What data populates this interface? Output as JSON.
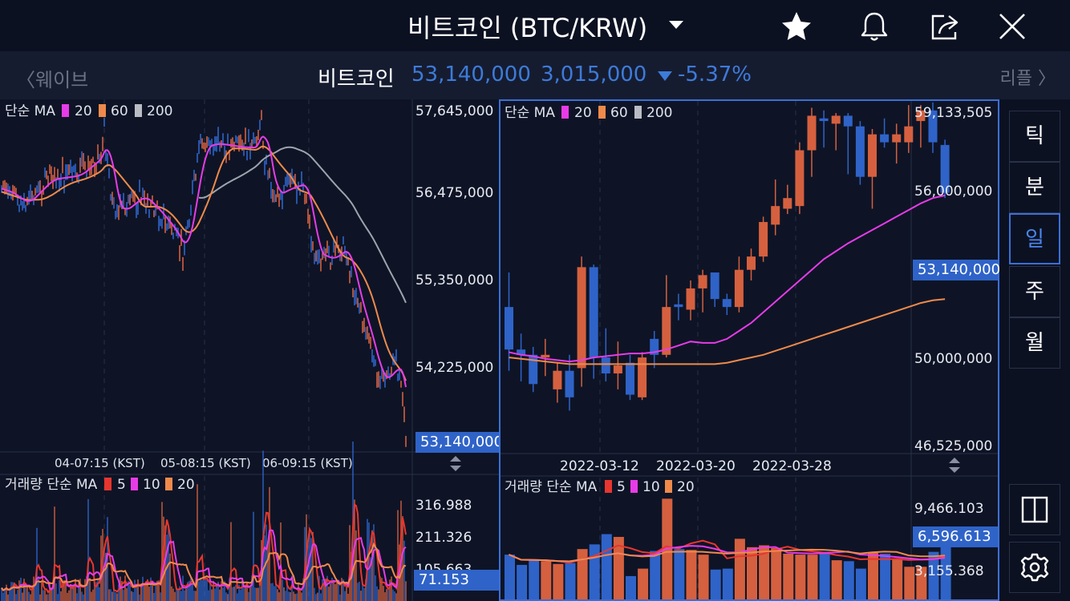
{
  "header": {
    "title": "비트코인 (BTC/KRW)",
    "icons": [
      "star-icon",
      "bell-icon",
      "share-icon",
      "close-icon"
    ]
  },
  "pricebar": {
    "prev_label": "웨이브",
    "next_label": "리플",
    "coin_name": "비트코인",
    "price": "53,140,000",
    "change": "3,015,000",
    "change_pct": "-5.37%",
    "change_color": "#3d7bd9"
  },
  "left_chart": {
    "legend_prefix": "단순 MA",
    "ma_periods": [
      "20",
      "60",
      "200"
    ],
    "ma_colors": [
      "#e83be8",
      "#f08a4b",
      "#b9bcc4"
    ],
    "y_ticks": [
      "57,645,000",
      "56,475,000",
      "55,350,000",
      "54,225,000"
    ],
    "price_badge": "53,140,000",
    "x_ticks": [
      "04-07:15 (KST)",
      "05-08:15 (KST)",
      "06-09:15 (KST)"
    ],
    "volume_legend_prefix": "거래량 단순 MA",
    "volume_ma_periods": [
      "5",
      "10",
      "20"
    ],
    "volume_ma_colors": [
      "#e8362e",
      "#e83be8",
      "#f08a4b"
    ],
    "volume_y_ticks": [
      "316.988",
      "211.326",
      "105.663"
    ],
    "volume_badge": "71.153"
  },
  "right_chart": {
    "legend_prefix": "단순 MA",
    "ma_periods": [
      "20",
      "60",
      "200"
    ],
    "ma_colors": [
      "#e83be8",
      "#f08a4b",
      "#b9bcc4"
    ],
    "y_ticks": [
      "59,133,505",
      "56,000,000",
      "50,000,000",
      "46,525,000"
    ],
    "price_badge": "53,140,000",
    "x_ticks": [
      "2022-03-12",
      "2022-03-20",
      "2022-03-28"
    ],
    "volume_legend_prefix": "거래량 단순 MA",
    "volume_ma_periods": [
      "5",
      "10",
      "20"
    ],
    "volume_ma_colors": [
      "#e8362e",
      "#e83be8",
      "#f08a4b"
    ],
    "volume_y_ticks": [
      "9,466.103",
      "3,155.368"
    ],
    "volume_badge": "6,596.613",
    "candles": [
      {
        "o": 51800,
        "c": 50200,
        "h": 53100,
        "l": 49400
      },
      {
        "o": 50200,
        "c": 50000,
        "h": 50800,
        "l": 49000
      },
      {
        "o": 50000,
        "c": 48900,
        "h": 50300,
        "l": 48600
      },
      {
        "o": 49900,
        "c": 50000,
        "h": 50600,
        "l": 49200
      },
      {
        "o": 48700,
        "c": 49400,
        "h": 49700,
        "l": 48200
      },
      {
        "o": 49400,
        "c": 48400,
        "h": 50000,
        "l": 47900
      },
      {
        "o": 49500,
        "c": 53300,
        "h": 53700,
        "l": 48800
      },
      {
        "o": 53300,
        "c": 49900,
        "h": 53400,
        "l": 49100
      },
      {
        "o": 49900,
        "c": 49300,
        "h": 51000,
        "l": 49000
      },
      {
        "o": 49300,
        "c": 49600,
        "h": 50500,
        "l": 48700
      },
      {
        "o": 49700,
        "c": 48500,
        "h": 50000,
        "l": 48300
      },
      {
        "o": 48400,
        "c": 49900,
        "h": 50100,
        "l": 48300
      },
      {
        "o": 50600,
        "c": 50000,
        "h": 50900,
        "l": 49500
      },
      {
        "o": 50000,
        "c": 51800,
        "h": 53000,
        "l": 49900
      },
      {
        "o": 51900,
        "c": 51800,
        "h": 52300,
        "l": 51300
      },
      {
        "o": 51700,
        "c": 52500,
        "h": 52800,
        "l": 51300
      },
      {
        "o": 52500,
        "c": 53000,
        "h": 53200,
        "l": 51600
      },
      {
        "o": 53100,
        "c": 52100,
        "h": 53000,
        "l": 51800
      },
      {
        "o": 52100,
        "c": 51800,
        "h": 52300,
        "l": 51500
      },
      {
        "o": 51800,
        "c": 53200,
        "h": 53700,
        "l": 51600
      },
      {
        "o": 53200,
        "c": 53700,
        "h": 54000,
        "l": 52800
      },
      {
        "o": 53700,
        "c": 55000,
        "h": 55200,
        "l": 53500
      },
      {
        "o": 54900,
        "c": 55600,
        "h": 56600,
        "l": 54500
      },
      {
        "o": 55500,
        "c": 55900,
        "h": 56400,
        "l": 55300
      },
      {
        "o": 55600,
        "c": 57700,
        "h": 58000,
        "l": 55300
      },
      {
        "o": 57700,
        "c": 59000,
        "h": 59300,
        "l": 56700
      },
      {
        "o": 58900,
        "c": 58800,
        "h": 59200,
        "l": 57800
      },
      {
        "o": 58700,
        "c": 59000,
        "h": 59100,
        "l": 57700
      },
      {
        "o": 59000,
        "c": 58600,
        "h": 59100,
        "l": 56800
      },
      {
        "o": 58600,
        "c": 56700,
        "h": 58800,
        "l": 56400
      },
      {
        "o": 56700,
        "c": 58300,
        "h": 58500,
        "l": 55500
      },
      {
        "o": 58300,
        "c": 58000,
        "h": 58900,
        "l": 57800
      },
      {
        "o": 58000,
        "c": 58300,
        "h": 58700,
        "l": 57200
      },
      {
        "o": 58000,
        "c": 58600,
        "h": 59400,
        "l": 57600
      },
      {
        "o": 58800,
        "c": 59200,
        "h": 59400,
        "l": 57800
      },
      {
        "o": 59200,
        "c": 58000,
        "h": 59500,
        "l": 57600
      },
      {
        "o": 57900,
        "c": 56100,
        "h": 58100,
        "l": 55900
      }
    ],
    "ma20": [
      50100,
      50000,
      49950,
      49850,
      49800,
      49750,
      49800,
      49900,
      49950,
      50000,
      50050,
      50050,
      50100,
      50200,
      50350,
      50500,
      50450,
      50450,
      50600,
      50900,
      51200,
      51600,
      52000,
      52400,
      52800,
      53200,
      53600,
      53900,
      54200,
      54450,
      54700,
      54950,
      55200,
      55450,
      55700,
      55900,
      56000
    ],
    "ma60": [
      49900,
      49850,
      49800,
      49750,
      49700,
      49650,
      49650,
      49650,
      49650,
      49650,
      49650,
      49650,
      49650,
      49650,
      49650,
      49650,
      49650,
      49650,
      49700,
      49800,
      49900,
      50000,
      50150,
      50300,
      50450,
      50600,
      50750,
      50900,
      51050,
      51200,
      51350,
      51500,
      51650,
      51800,
      51950,
      52050,
      52100
    ],
    "volumes": [
      4800,
      3700,
      4200,
      4100,
      3800,
      3900,
      5400,
      5900,
      7000,
      6700,
      2500,
      3300,
      5200,
      10800,
      5400,
      5300,
      4800,
      3200,
      3300,
      6500,
      5600,
      5800,
      5500,
      4900,
      4800,
      4800,
      5100,
      4200,
      4100,
      3300,
      5000,
      4900,
      4400,
      3500,
      3500,
      5100,
      6600
    ]
  },
  "timeframes": {
    "items": [
      "틱",
      "분",
      "일",
      "주",
      "월"
    ],
    "active": "일"
  },
  "accent_color": "#3b6fd6",
  "up_color": "#d5603f",
  "down_color": "#2f63c8"
}
